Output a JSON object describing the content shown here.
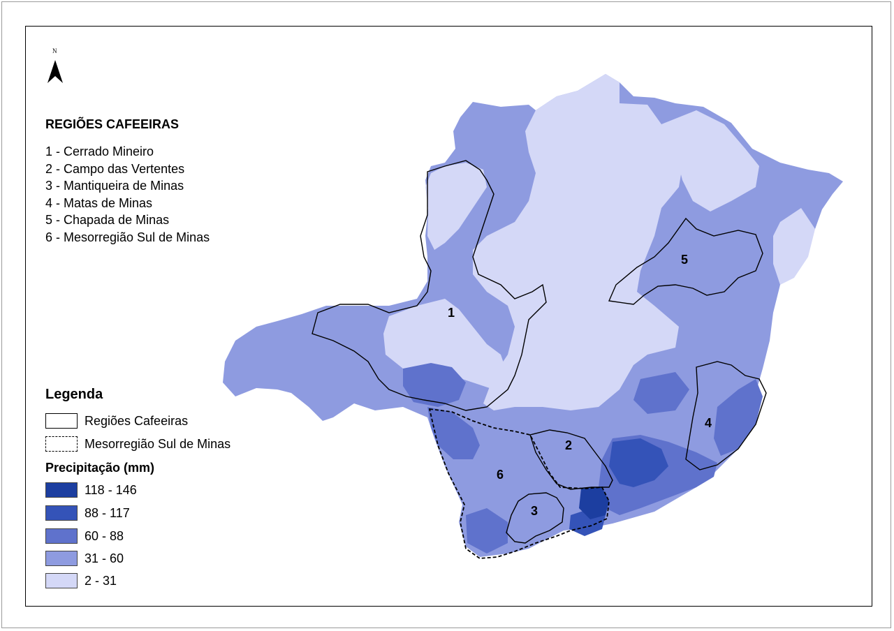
{
  "map": {
    "north_label": "N",
    "regions_title": "REGIÕES CAFEEIRAS",
    "regions": [
      {
        "number": "1",
        "label": "1 - Cerrado Mineiro"
      },
      {
        "number": "2",
        "label": "2 - Campo das Vertentes"
      },
      {
        "number": "3",
        "label": "3 - Mantiqueira de Minas"
      },
      {
        "number": "4",
        "label": "4 - Matas de Minas"
      },
      {
        "number": "5",
        "label": "5 - Chapada de Minas"
      },
      {
        "number": "6",
        "label": "6 - Mesorregião Sul de Minas"
      }
    ],
    "legend": {
      "title": "Legenda",
      "items": [
        {
          "label": "Regiões Cafeeiras",
          "style": "solid"
        },
        {
          "label": "Mesorregião Sul de Minas",
          "style": "dashed"
        }
      ],
      "precip_title": "Precipitação (mm)",
      "classes": [
        {
          "label": "118 - 146",
          "color": "#1c3ea0"
        },
        {
          "label": "88 - 117",
          "color": "#3453b8"
        },
        {
          "label": "60 - 88",
          "color": "#5f72cc"
        },
        {
          "label": "31 - 60",
          "color": "#8e9be0"
        },
        {
          "label": "2 - 31",
          "color": "#d4d8f7"
        }
      ]
    }
  }
}
